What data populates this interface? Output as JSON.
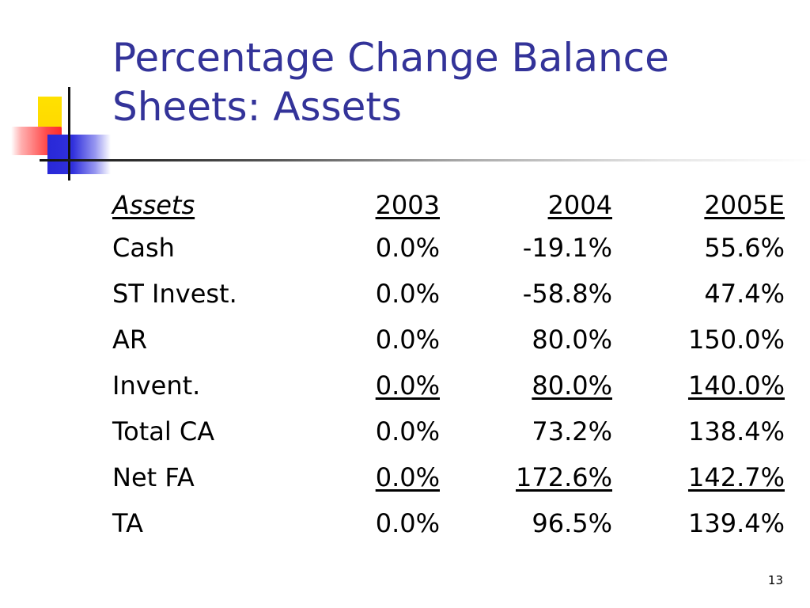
{
  "slide": {
    "title": "Percentage Change Balance Sheets: Assets",
    "page_number": "13"
  },
  "table": {
    "header": {
      "label": "Assets",
      "cols": [
        "2003",
        "2004",
        "2005E"
      ]
    },
    "rows": [
      {
        "label": "Cash",
        "values": [
          "0.0%",
          "-19.1%",
          "55.6%"
        ],
        "underline": [
          false,
          false,
          false
        ]
      },
      {
        "label": "ST Invest.",
        "values": [
          "0.0%",
          "-58.8%",
          "47.4%"
        ],
        "underline": [
          false,
          false,
          false
        ]
      },
      {
        "label": "AR",
        "values": [
          "0.0%",
          "80.0%",
          "150.0%"
        ],
        "underline": [
          false,
          false,
          false
        ]
      },
      {
        "label": "Invent.",
        "values": [
          "0.0%",
          "80.0%",
          "140.0%"
        ],
        "underline": [
          true,
          true,
          true
        ]
      },
      {
        "label": "Total CA",
        "values": [
          "0.0%",
          "73.2%",
          "138.4%"
        ],
        "underline": [
          false,
          false,
          false
        ]
      },
      {
        "label": "Net FA",
        "values": [
          "0.0%",
          "172.6%",
          "142.7%"
        ],
        "underline": [
          true,
          true,
          true
        ]
      },
      {
        "label": "TA",
        "values": [
          "0.0%",
          "96.5%",
          "139.4%"
        ],
        "underline": [
          false,
          false,
          false
        ]
      }
    ]
  },
  "colors": {
    "title": "#333399",
    "text": "#000000",
    "accent_yellow": "#ffd600",
    "accent_red": "#ff2a2a",
    "accent_blue": "#2828d8"
  }
}
